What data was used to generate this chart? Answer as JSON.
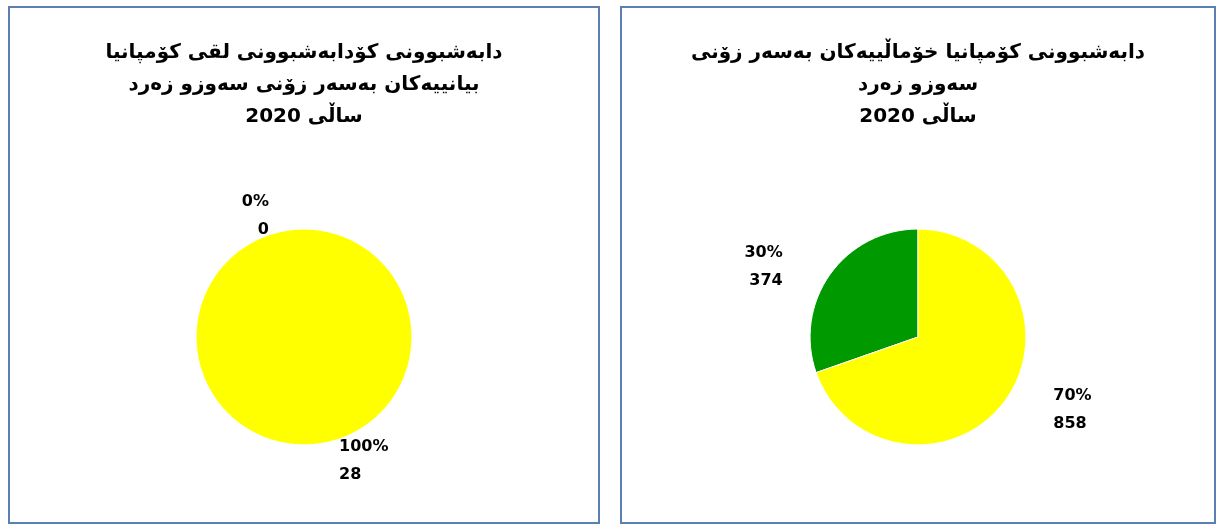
{
  "chart_data": [
    {
      "type": "pie",
      "title": "دابەشبوونی کۆدابەشبوونی لقی کۆمپانیا\nبیانییەکان بەسەر زۆنی سەوزو زەرد\nساڵی 2020",
      "categories": [
        null,
        null
      ],
      "values": [
        0,
        28
      ],
      "colors": [
        "#009a00",
        "#ffff00"
      ],
      "value_labels": [
        "0%\n0",
        "100%\n28"
      ]
    },
    {
      "type": "pie",
      "title": "دابەشبوونی کۆمپانیا خۆماڵییەکان بەسەر زۆنی\nسەوزو زەرد\nساڵی 2020",
      "categories": [
        null,
        null
      ],
      "values": [
        374,
        858
      ],
      "colors": [
        "#009a00",
        "#ffff00"
      ],
      "value_labels": [
        "30%\n374",
        "70%\n858"
      ]
    }
  ]
}
